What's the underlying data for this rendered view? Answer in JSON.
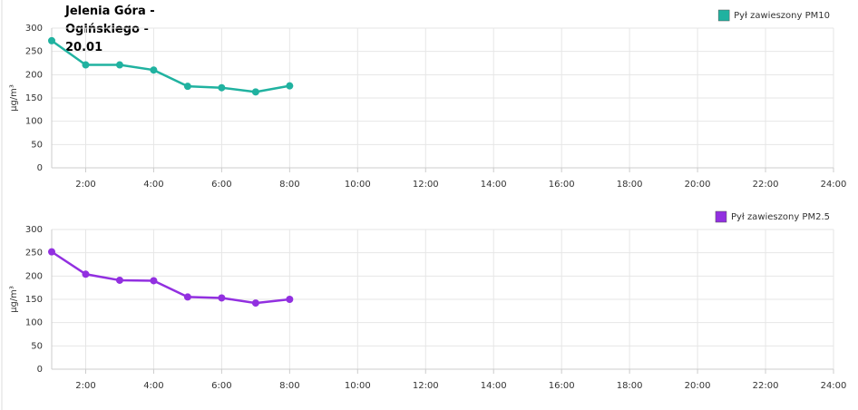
{
  "chart_data": [
    {
      "type": "line",
      "title": "Jelenia Góra - Ogińskiego - 20.01",
      "y_label": "µg/m³",
      "x": [
        1,
        2,
        3,
        4,
        5,
        6,
        7,
        8
      ],
      "series": [
        {
          "name": "Pył zawieszony PM10",
          "color": "#20b2a0",
          "values": [
            273,
            221,
            221,
            210,
            175,
            172,
            163,
            176
          ]
        }
      ],
      "xlim": [
        1,
        24
      ],
      "ylim": [
        0,
        300
      ],
      "xticks": [
        {
          "value": 2,
          "label": "2:00"
        },
        {
          "value": 4,
          "label": "4:00"
        },
        {
          "value": 6,
          "label": "6:00"
        },
        {
          "value": 8,
          "label": "8:00"
        },
        {
          "value": 10,
          "label": "10:00"
        },
        {
          "value": 12,
          "label": "12:00"
        },
        {
          "value": 14,
          "label": "14:00"
        },
        {
          "value": 16,
          "label": "16:00"
        },
        {
          "value": 18,
          "label": "18:00"
        },
        {
          "value": 20,
          "label": "20:00"
        },
        {
          "value": 22,
          "label": "22:00"
        },
        {
          "value": 24,
          "label": "24:00"
        }
      ],
      "yticks": [
        0,
        50,
        100,
        150,
        200,
        250,
        300
      ],
      "grid": true
    },
    {
      "type": "line",
      "y_label": "µg/m³",
      "x": [
        1,
        2,
        3,
        4,
        5,
        6,
        7,
        8
      ],
      "series": [
        {
          "name": "Pył zawieszony PM2.5",
          "color": "#9230e0",
          "values": [
            252,
            204,
            191,
            190,
            155,
            153,
            142,
            150
          ]
        }
      ],
      "xlim": [
        1,
        24
      ],
      "ylim": [
        0,
        300
      ],
      "xticks": [
        {
          "value": 2,
          "label": "2:00"
        },
        {
          "value": 4,
          "label": "4:00"
        },
        {
          "value": 6,
          "label": "6:00"
        },
        {
          "value": 8,
          "label": "8:00"
        },
        {
          "value": 10,
          "label": "10:00"
        },
        {
          "value": 12,
          "label": "12:00"
        },
        {
          "value": 14,
          "label": "14:00"
        },
        {
          "value": 16,
          "label": "16:00"
        },
        {
          "value": 18,
          "label": "18:00"
        },
        {
          "value": 20,
          "label": "20:00"
        },
        {
          "value": 22,
          "label": "22:00"
        },
        {
          "value": 24,
          "label": "24:00"
        }
      ],
      "yticks": [
        0,
        50,
        100,
        150,
        200,
        250,
        300
      ],
      "grid": true
    }
  ]
}
